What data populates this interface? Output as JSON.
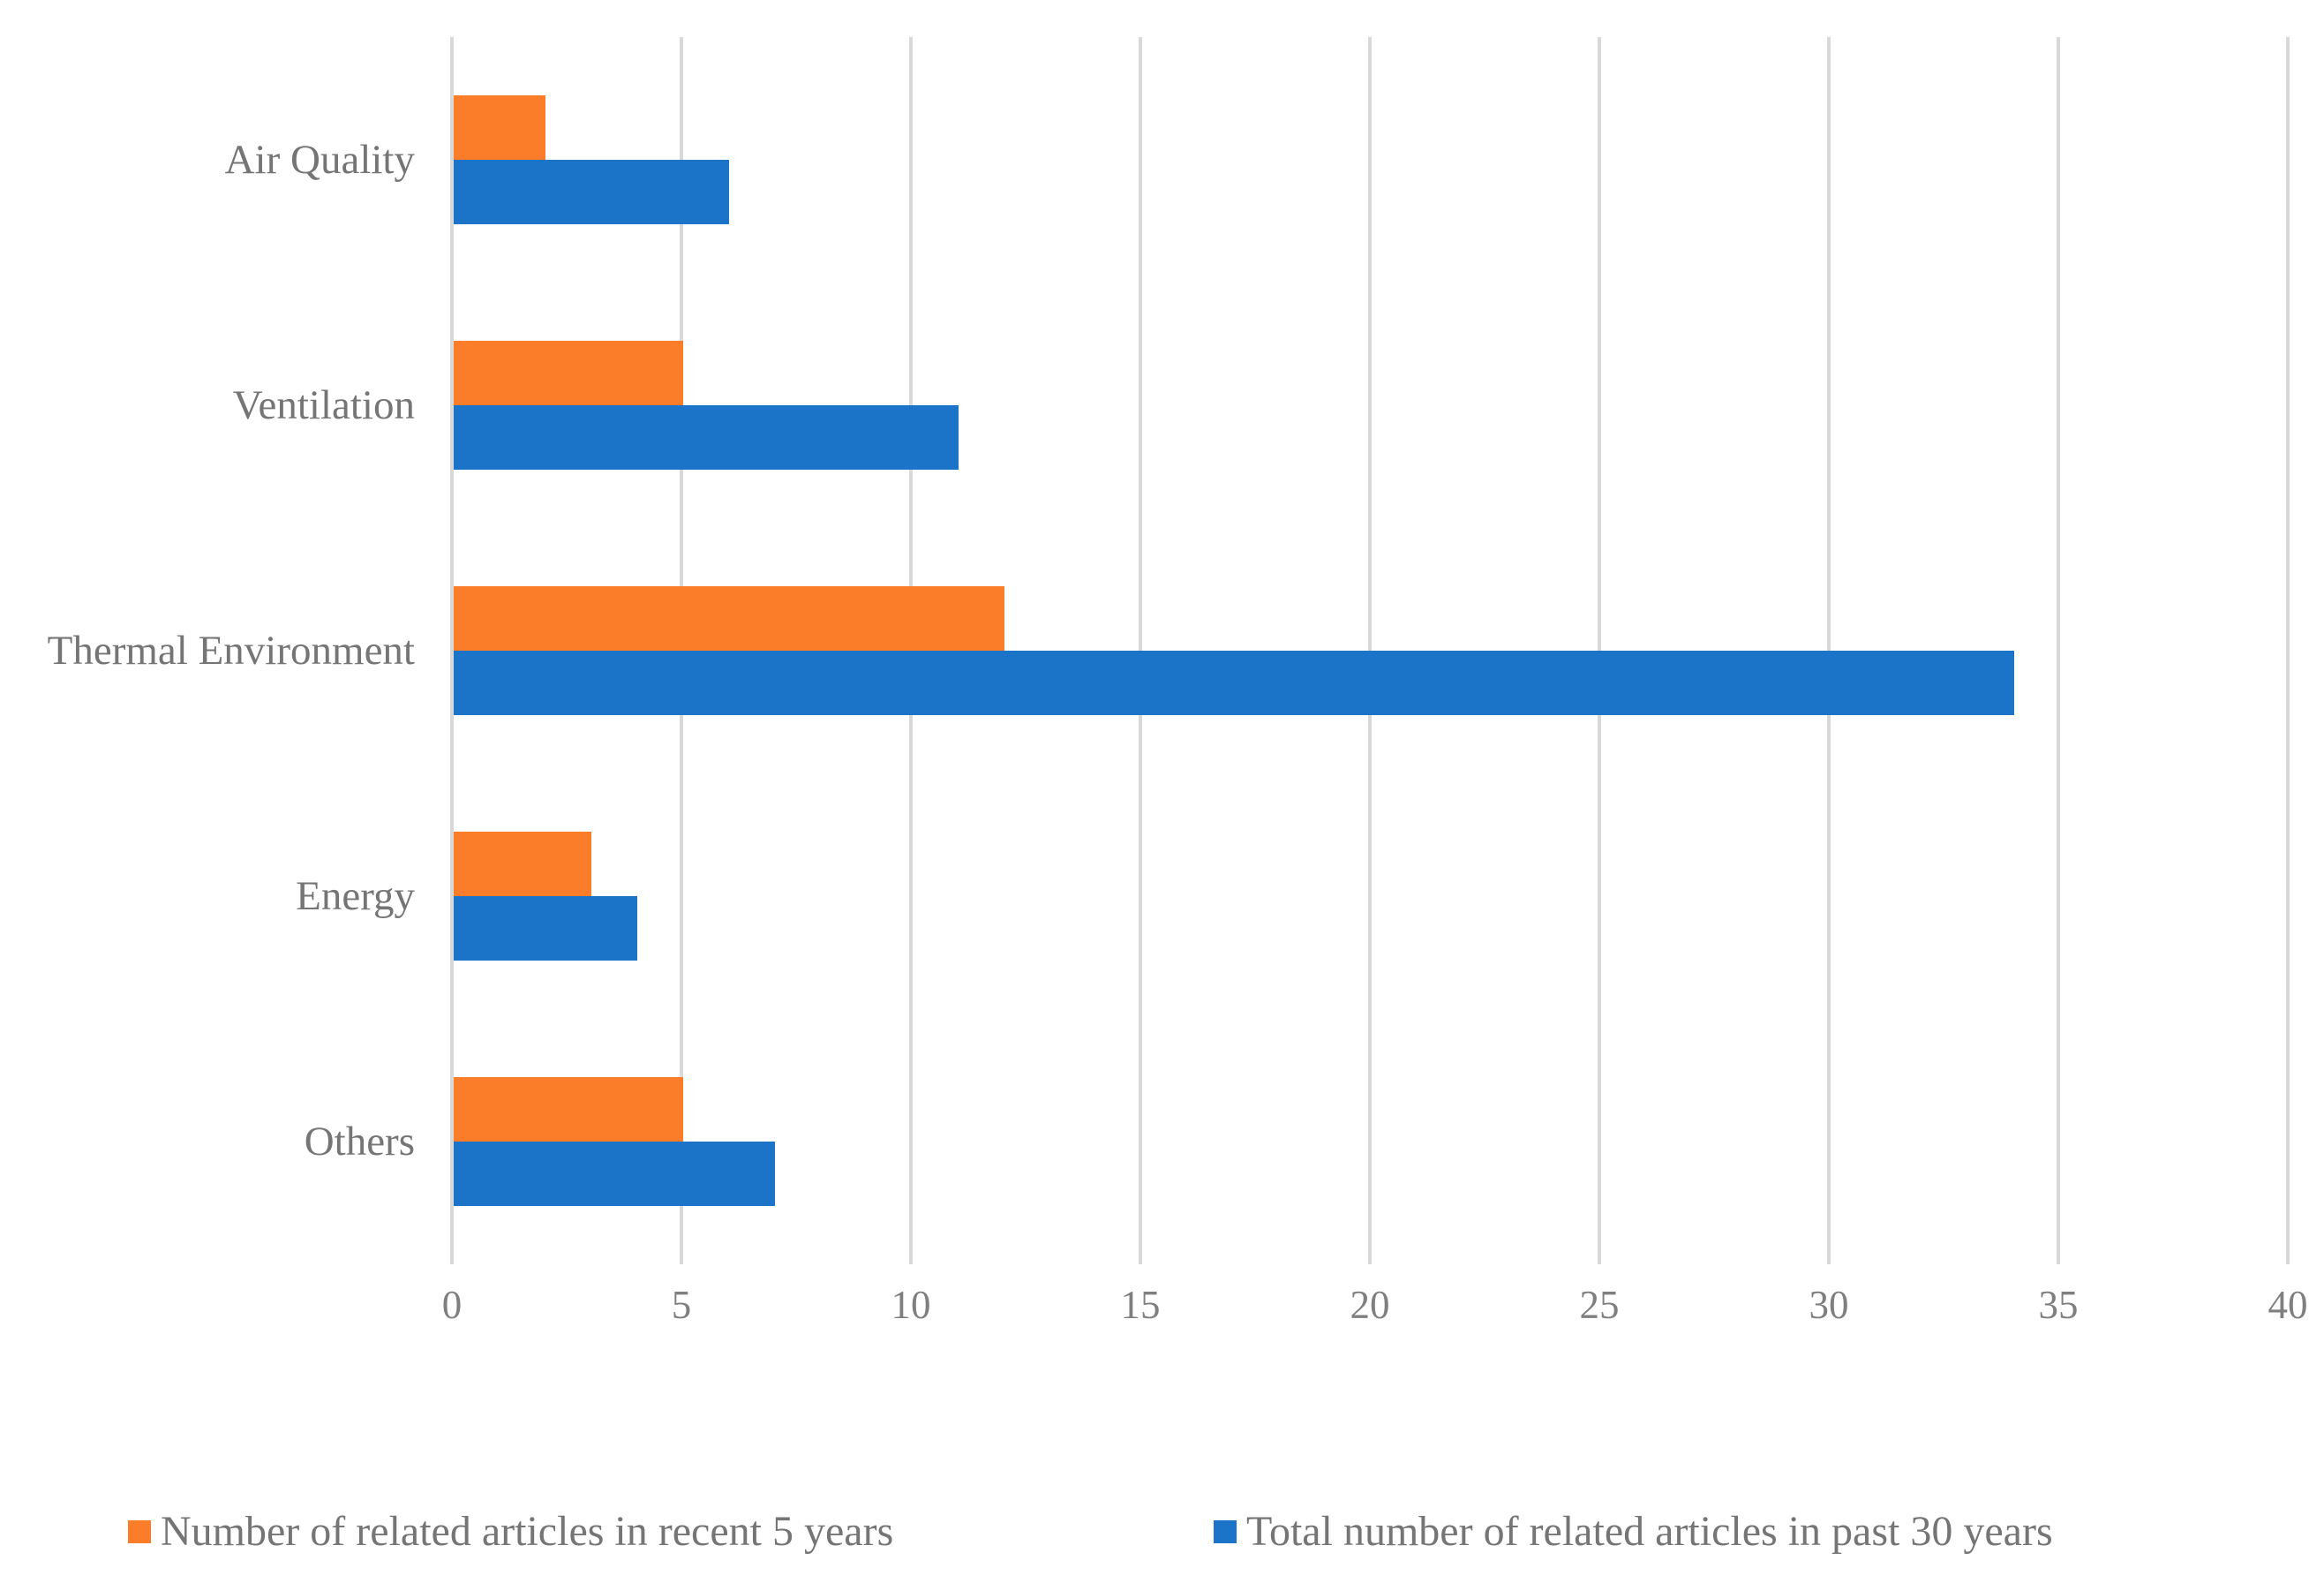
{
  "chart_data": {
    "type": "bar",
    "orientation": "horizontal",
    "title": "",
    "xlabel": "",
    "ylabel": "",
    "categories": [
      "Air Quality",
      "Ventilation",
      "Thermal Environment",
      "Energy",
      "Others"
    ],
    "series": [
      {
        "name": "Number of related articles in recent 5 years",
        "color": "#fb7d2a",
        "values": [
          2,
          5,
          12,
          3,
          5
        ]
      },
      {
        "name": "Total number of related articles in past 30 years",
        "color": "#1b74c8",
        "values": [
          6,
          11,
          34,
          4,
          7
        ]
      }
    ],
    "x_ticks": [
      0,
      5,
      10,
      15,
      20,
      25,
      30,
      35,
      40
    ],
    "xlim": [
      0,
      40
    ],
    "grid": "vertical-only",
    "gridline_color": "#d9d9d9",
    "axis_text_color": "#7f7f7f",
    "category_text_color": "#757575",
    "legend_position": "bottom",
    "background": "#ffffff"
  },
  "legend": {
    "items": [
      {
        "label": "Number of related articles in recent 5 years",
        "color": "#fb7d2a"
      },
      {
        "label": "Total number of related articles in past 30 years",
        "color": "#1b74c8"
      }
    ]
  }
}
